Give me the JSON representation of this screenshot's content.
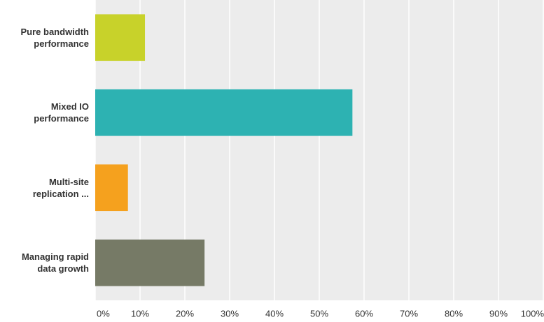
{
  "chart_data": {
    "type": "bar",
    "orientation": "horizontal",
    "categories": [
      "Pure bandwidth performance",
      "Mixed IO performance",
      "Multi-site replication ...",
      "Managing rapid data growth"
    ],
    "values": [
      11.1,
      57.4,
      7.3,
      24.4
    ],
    "colors": [
      "#c8d22a",
      "#2db2b2",
      "#f5a11e",
      "#767a66"
    ],
    "xlim": [
      0,
      100
    ],
    "xticks": [
      {
        "value": 0,
        "label": "0%"
      },
      {
        "value": 10,
        "label": "10%"
      },
      {
        "value": 20,
        "label": "20%"
      },
      {
        "value": 30,
        "label": "30%"
      },
      {
        "value": 40,
        "label": "40%"
      },
      {
        "value": 50,
        "label": "50%"
      },
      {
        "value": 60,
        "label": "60%"
      },
      {
        "value": 70,
        "label": "70%"
      },
      {
        "value": 80,
        "label": "80%"
      },
      {
        "value": 90,
        "label": "90%"
      },
      {
        "value": 100,
        "label": "100%"
      }
    ],
    "grid": true
  }
}
